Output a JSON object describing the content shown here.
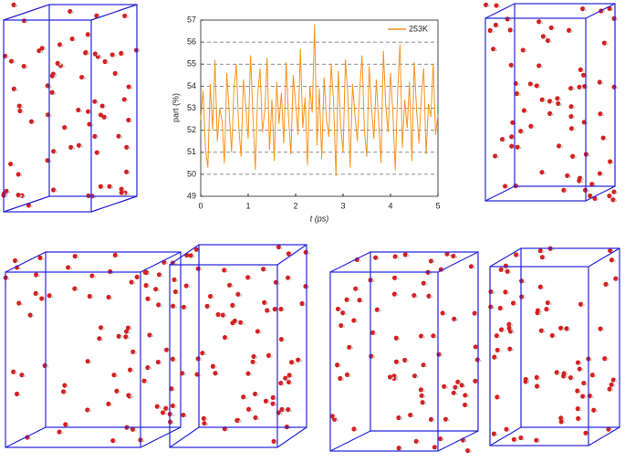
{
  "chart_data": {
    "type": "line",
    "xlabel": "t (ps)",
    "ylabel": "part (%)",
    "xlim": [
      0,
      5
    ],
    "xticks": [
      0,
      1,
      2,
      3,
      4,
      5
    ],
    "ylim": [
      49,
      57
    ],
    "yticks": [
      49,
      50,
      51,
      52,
      53,
      54,
      55,
      56,
      57
    ],
    "grid": true,
    "legend": "upper right",
    "x": [
      0,
      0.05,
      0.1,
      0.15,
      0.2,
      0.25,
      0.3,
      0.35,
      0.4,
      0.45,
      0.5,
      0.55,
      0.6,
      0.65,
      0.7,
      0.75,
      0.8,
      0.85,
      0.9,
      0.95,
      1,
      1.05,
      1.1,
      1.15,
      1.2,
      1.25,
      1.3,
      1.35,
      1.4,
      1.45,
      1.5,
      1.55,
      1.6,
      1.65,
      1.7,
      1.75,
      1.8,
      1.85,
      1.9,
      1.95,
      2,
      2.05,
      2.1,
      2.15,
      2.2,
      2.25,
      2.3,
      2.35,
      2.4,
      2.45,
      2.5,
      2.55,
      2.6,
      2.65,
      2.7,
      2.75,
      2.8,
      2.85,
      2.9,
      2.95,
      3,
      3.05,
      3.1,
      3.15,
      3.2,
      3.25,
      3.3,
      3.35,
      3.4,
      3.45,
      3.5,
      3.55,
      3.6,
      3.65,
      3.7,
      3.75,
      3.8,
      3.85,
      3.9,
      3.95,
      4,
      4.05,
      4.1,
      4.15,
      4.2,
      4.25,
      4.3,
      4.35,
      4.4,
      4.45,
      4.5,
      4.55,
      4.6,
      4.65,
      4.7,
      4.75,
      4.8,
      4.85,
      4.9,
      4.95,
      5
    ],
    "series": [
      {
        "name": "253K",
        "color": "#f7941d",
        "values": [
          52.5,
          53.8,
          51.2,
          50.3,
          54.1,
          52.0,
          55.2,
          51.5,
          53.0,
          52.4,
          50.5,
          54.6,
          52.8,
          51.0,
          53.9,
          55.0,
          52.2,
          50.8,
          54.3,
          53.1,
          51.6,
          55.4,
          52.7,
          50.2,
          53.6,
          54.8,
          51.9,
          52.9,
          55.3,
          51.1,
          53.4,
          50.6,
          54.2,
          52.3,
          53.7,
          51.4,
          55.1,
          52.6,
          50.9,
          54.5,
          53.2,
          51.8,
          55.7,
          52.1,
          53.5,
          50.4,
          54.0,
          52.8,
          56.8,
          51.3,
          53.9,
          50.7,
          54.4,
          52.5,
          51.7,
          55.0,
          53.3,
          49.9,
          54.7,
          52.2,
          51.0,
          55.2,
          53.6,
          50.3,
          54.1,
          52.7,
          51.5,
          53.8,
          55.4,
          52.0,
          50.8,
          54.9,
          53.0,
          51.6,
          54.3,
          52.4,
          50.5,
          55.6,
          53.1,
          51.9,
          54.6,
          52.8,
          50.2,
          53.7,
          55.9,
          51.2,
          53.4,
          52.1,
          54.2,
          50.6,
          55.1,
          52.9,
          51.4,
          53.5,
          54.8,
          50.9,
          53.2,
          52.6,
          55.0,
          51.8,
          52.7
        ]
      }
    ]
  }
}
